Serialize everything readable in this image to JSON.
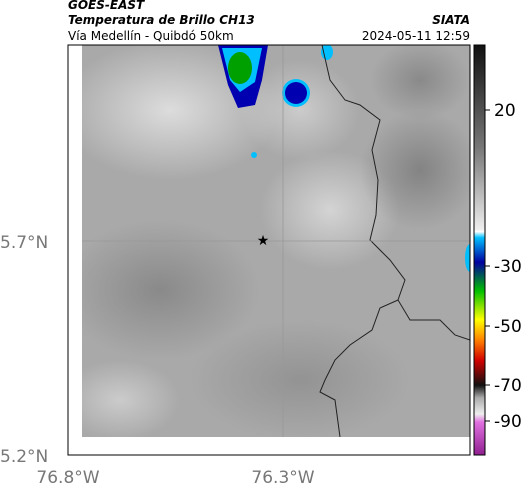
{
  "header": {
    "satellite": "GOES-EAST",
    "product": "Temperatura de Brillo CH13",
    "route": "Vía Medellín - Quibdó 50km",
    "source": "SIATA",
    "datetime": "2024-05-11 12:59"
  },
  "map": {
    "lat_labels": [
      "5.7°N",
      "5.2°N"
    ],
    "lon_labels": [
      "76.8°W",
      "76.3°W"
    ]
  },
  "colorbar": {
    "ticks": [
      20,
      -30,
      -50,
      -70,
      -90
    ]
  }
}
